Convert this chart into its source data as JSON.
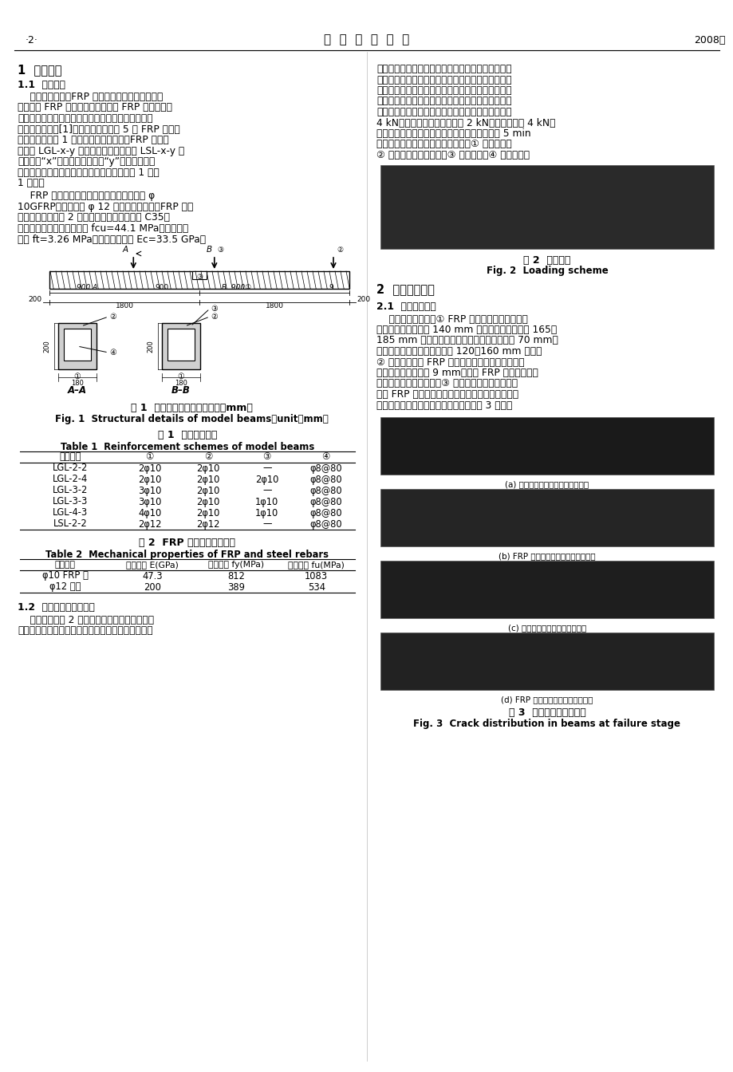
{
  "page_num": "·2·",
  "journal": "土  木  工  程  学  报",
  "year": "2008年",
  "bg_color": "#ffffff",
  "left_col": {
    "section1_title": "1  试验概况",
    "section11_title": "1.1  试件设计",
    "para1_lines": [
      "    已有研究表明，FRP 筋混凝土简支梁破坏形态主",
      "要表现为 FRP 筋拉断的少筋破坏与 FRP 筋拉断前混",
      "凝土压碎的超筋破坏。前者破坏表现得更为突然，脆",
      "性特征更为明显[1]。为此，共制作了 5 根 FRP 筋混凝",
      "土超筋连续梁和 1 根钉筋混凝土连续梁。FRP 筋混凝",
      "土梁以 LGL-x-y 表示，钉筋混凝土梁以 LSL-x-y 表",
      "示，其中“x”表示梁底筋数量，“y”表示中间支座",
      "截面配筋数量，试件简图及主要试验参数如图 1 及表",
      "1 所示。"
    ],
    "para2_lines": [
      "    FRP 筋采用黏结性能良好的表面交叉缠绕 φ",
      "10GFRP；钉筋采用 φ 12 月牙形变形钉筋；FRP 筋和",
      "钉筋力学性能如表 2 所示。混凝土强度等级为 C35，",
      "实测混凝土立方体抗压强度 fcu=44.1 MPa，轴心抗拉",
      "强度 ft=3.26 MPa，抗压弹性模量 Ec=33.5 GPa。"
    ],
    "fig1_caption_cn": "图 1  模型梁结构示意图（单位：mm）",
    "fig1_caption_en": "Fig. 1  Structural details of model beams（unit：mm）",
    "table1_title_cn": "表 1  模型配筋方案",
    "table1_title_en": "Table 1  Reinforcement schemes of model beams",
    "table1_headers": [
      "试件编号",
      "①",
      "②",
      "③",
      "④"
    ],
    "table1_rows": [
      [
        "LGL-2-2",
        "2φ10",
        "2φ10",
        "—",
        "φ8@80"
      ],
      [
        "LGL-2-4",
        "2φ10",
        "2φ10",
        "2φ10",
        "φ8@80"
      ],
      [
        "LGL-3-2",
        "3φ10",
        "2φ10",
        "—",
        "φ8@80"
      ],
      [
        "LGL-3-3",
        "3φ10",
        "2φ10",
        "1φ10",
        "φ8@80"
      ],
      [
        "LGL-4-3",
        "4φ10",
        "2φ10",
        "1φ10",
        "φ8@80"
      ],
      [
        "LSL-2-2",
        "2φ12",
        "2φ12",
        "—",
        "φ8@80"
      ]
    ],
    "table2_title_cn": "表 2  FRP 筋及钉筋力学性能",
    "table2_title_en": "Table 2  Mechanical properties of FRP and steel rebars",
    "table2_headers": [
      "配筋类型",
      "弹性模量 E(GPa)",
      "屈服强度 fy(MPa)",
      "极限强度 fu(MPa)"
    ],
    "table2_rows": [
      [
        "φ10 FRP 筋",
        "47.3",
        "812",
        "1083"
      ],
      [
        "φ12 钉筋",
        "200",
        "389",
        "534"
      ]
    ],
    "section12_title": "1.2  加载装置及测试内容",
    "para3_lines": [
      "    加载装置如图 2 所示。为了消除支座不均匀沉",
      "降，所有支座做成可调的。先调节支座水平度，使其"
    ]
  },
  "right_col": {
    "para_cont_lines": [
      "处于同一水平上。试件就位后，先少量加载，计算支",
      "座反力，通过调节支座高度使支座反力比例与按弹性",
      "计算比例相同。在每级加载中，测量支座沉降量差，",
      "然后调节支座高度消除沉降差。试验梁上的两个集中",
      "力通过同步千斤顶分级加载，荷载分级为开裂前每级",
      "4 kN，加载到梁即将开裂每级 2 kN；开裂后每级 4 kN；",
      "每级荷载加载完毕，消除支座不均匀沉降并持荷 5 min",
      "后记录试验数据。测试主要内容有：① 开裂荷载；",
      "② 裂缝开展、分布情况；③ 跨中捶度；④ 支座反力。"
    ],
    "fig2_caption_cn": "图 2  加载方式",
    "fig2_caption_en": "Fig. 2  Loading scheme",
    "section2_title": "2  试验结果分析",
    "section21_title": "2.1  破坏过程比较",
    "para4_lines": [
      "    由试验现象可知：① FRP 筋混凝土连续梁一旦开",
      "裂，裂缝高度一般在 140 mm 左右，破坏时集中在 165～",
      "185 mm 之间；钉筋混凝土梁初裂缝高度约为 70 mm，",
      "钉筋屈服阶段裂缝高度集中在 120～160 mm 之间。",
      "② 破坏时钉筋及 FRP 筋混凝土连续梁中间支座的最",
      "大裂缝宽度均达到约 9 mm，说明 FRP 筋混凝土梁截",
      "面具有很好的转动能力。③ 根据观测混凝土的应变，",
      "所有 FRP 筋混凝土梁基本上均在中间支座和跨中加",
      "载点同时破坏。试件破坏时裂缝分布如图 3 所示。"
    ],
    "subfig_a": "(a) 钉筋混凝土梁中间支座破坏形态",
    "subfig_b": "(b) FRP 筋混凝土梁中间支座破坏形态",
    "subfig_c": "(c) 钉筋混凝土梁破坏时裂缝形态",
    "subfig_d": "(d) FRP 筋混凝土梁破坏时裂缝形态",
    "fig3_caption_cn": "图 3  梁破坏时的裂缝分布",
    "fig3_caption_en": "Fig. 3  Crack distribution in beams at failure stage"
  }
}
